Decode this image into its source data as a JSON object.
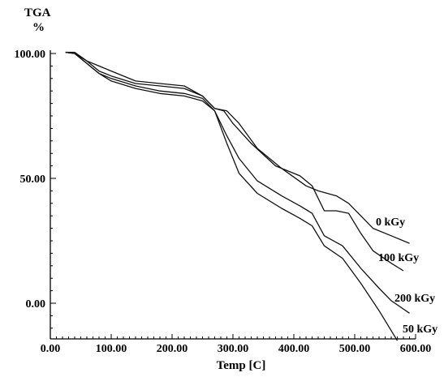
{
  "chart_data": {
    "type": "line",
    "ylabel": "TGA",
    "yunit": "%",
    "xlabel": "Temp [C]",
    "xlim": [
      0,
      600
    ],
    "ylim": [
      -15,
      105
    ],
    "xticks": [
      "0.00",
      "100.00",
      "200.00",
      "300.00",
      "400.00",
      "500.00",
      "600.00"
    ],
    "yticks": [
      "100.00",
      "50.00",
      "0.00"
    ],
    "ytick_values": [
      100,
      50,
      0
    ],
    "grid": false,
    "series": [
      {
        "name": "0 kGy",
        "x": [
          25,
          40,
          60,
          80,
          100,
          140,
          180,
          220,
          250,
          270,
          290,
          310,
          340,
          380,
          420,
          440,
          470,
          490,
          510,
          530,
          560,
          590
        ],
        "y": [
          100.5,
          100.5,
          97,
          93,
          91,
          88,
          87,
          86,
          83,
          78,
          77,
          72,
          62,
          54,
          47,
          45,
          43,
          40,
          35,
          30,
          27,
          24
        ]
      },
      {
        "name": "100 kGy",
        "x": [
          25,
          40,
          60,
          80,
          100,
          140,
          180,
          220,
          250,
          270,
          285,
          300,
          330,
          370,
          410,
          430,
          450,
          470,
          490,
          510,
          530,
          560,
          580
        ],
        "y": [
          100.5,
          100,
          97,
          95,
          93,
          89,
          88,
          87,
          83,
          78,
          77,
          72,
          64,
          55,
          51,
          47,
          37,
          37,
          36,
          28,
          21,
          16,
          13
        ]
      },
      {
        "name": "200 kGy",
        "x": [
          25,
          40,
          60,
          80,
          100,
          140,
          180,
          220,
          250,
          270,
          290,
          310,
          340,
          380,
          410,
          430,
          450,
          480,
          510,
          540,
          560,
          590
        ],
        "y": [
          100.5,
          100,
          96,
          92,
          90,
          87,
          85,
          84,
          82,
          77,
          67,
          58,
          49,
          43,
          39,
          36,
          27,
          23,
          14,
          6,
          1,
          -4
        ]
      },
      {
        "name": "50 kGy",
        "x": [
          25,
          40,
          60,
          80,
          100,
          140,
          180,
          220,
          250,
          270,
          290,
          310,
          340,
          380,
          410,
          430,
          450,
          480,
          510,
          540,
          570
        ],
        "y": [
          100.5,
          100,
          96,
          92,
          89,
          86,
          84,
          83,
          81,
          77,
          64,
          52,
          44,
          38,
          34,
          31,
          23,
          18,
          8,
          -3,
          -15
        ]
      }
    ]
  }
}
